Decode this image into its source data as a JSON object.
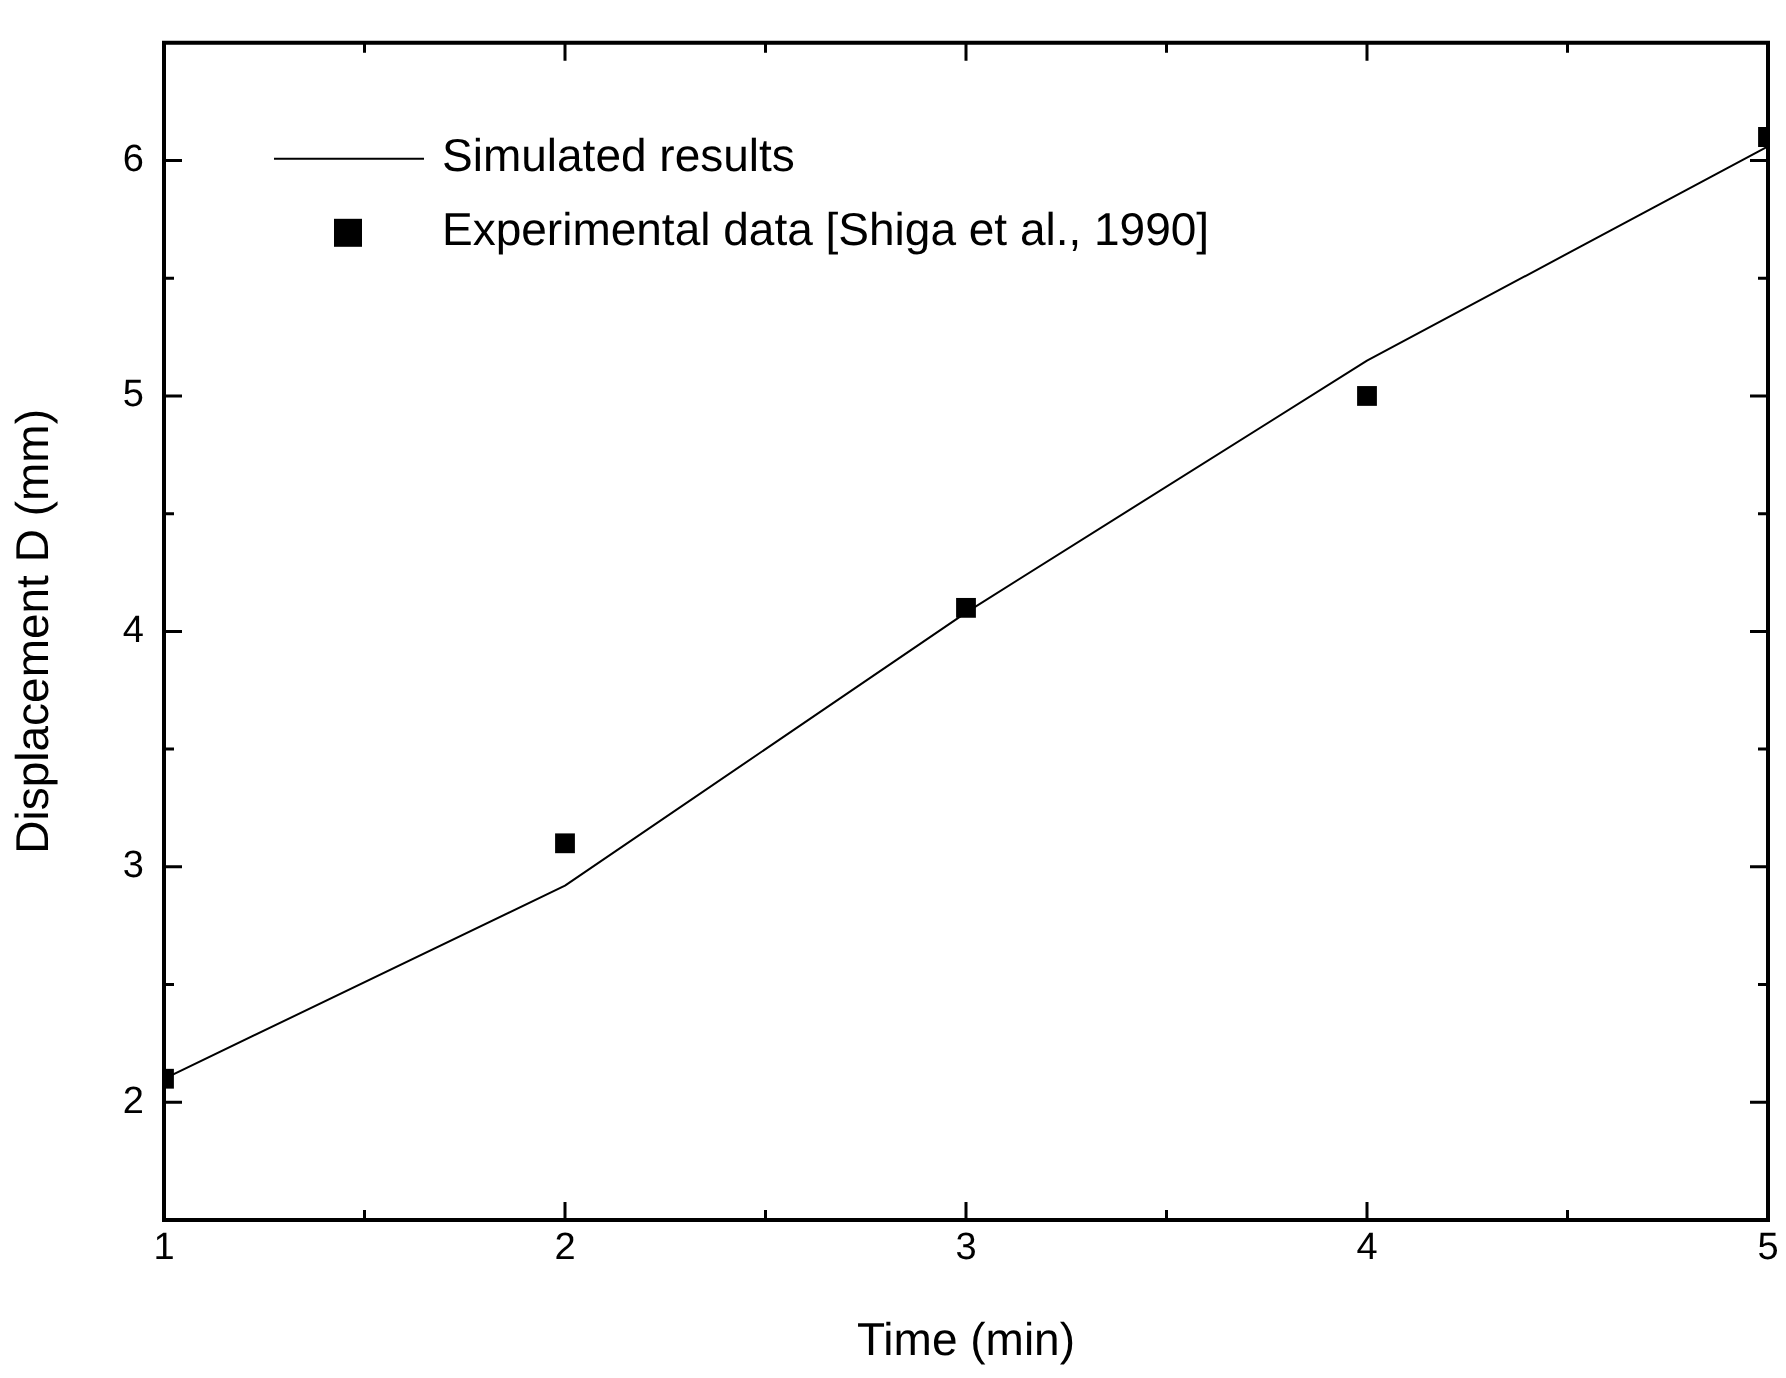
{
  "chart_data": {
    "type": "line",
    "xlabel": "Time (min)",
    "ylabel": "Displacement D (mm)",
    "xlim": [
      1,
      5
    ],
    "xticks": [
      1,
      {
        "value": 1.5,
        "label": null
      },
      2,
      {
        "value": 2.5,
        "label": null
      },
      3,
      {
        "value": 3.5,
        "label": null
      },
      4,
      {
        "value": 4.5,
        "label": null
      },
      5
    ],
    "ylim": [
      1.5,
      6.5
    ],
    "yticks": [
      2,
      {
        "value": 2.5,
        "label": null
      },
      3,
      {
        "value": 3.5,
        "label": null
      },
      4,
      {
        "value": 4.5,
        "label": null
      },
      5,
      {
        "value": 5.5,
        "label": null
      },
      6
    ],
    "grid": false,
    "legend": "top left",
    "series": [
      {
        "name": "Simulated results",
        "color": "#000000",
        "marker": "none",
        "x": [
          1,
          2,
          3,
          4,
          5
        ],
        "values": [
          2.1,
          2.92,
          4.08,
          5.15,
          6.06
        ]
      },
      {
        "name": "Experimental data [Shiga et al., 1990]",
        "type": "scatter",
        "color": "#000000",
        "marker": "square",
        "x": [
          1,
          2,
          3,
          4,
          5
        ],
        "values": [
          2.1,
          3.1,
          4.1,
          5.0,
          6.1
        ]
      }
    ]
  }
}
